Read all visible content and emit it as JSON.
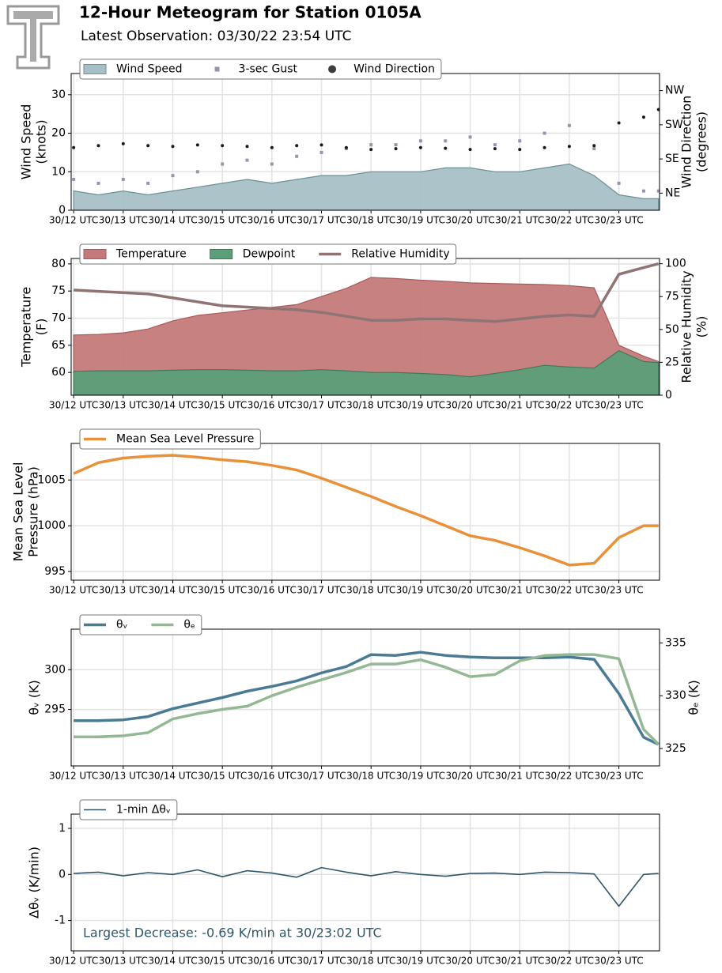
{
  "header": {
    "title": "12-Hour Meteogram for Station 0105A",
    "subtitle": "Latest Observation: 03/30/22 23:54 UTC"
  },
  "chart_data": [
    {
      "type": "area",
      "legend": "upper left",
      "grid": true,
      "ylabel": [
        "Wind Speed",
        "(knots)"
      ],
      "y2label": [
        "Wind Direction",
        "(degrees)"
      ],
      "x": [
        12,
        12.5,
        13,
        13.5,
        14,
        14.5,
        15,
        15.5,
        16,
        16.5,
        17,
        17.5,
        18,
        18.5,
        19,
        19.5,
        20,
        20.5,
        21,
        21.5,
        22,
        22.5,
        23,
        23.5,
        23.8
      ],
      "xlim": [
        11.95,
        23.82
      ],
      "xticks": [
        {
          "value": 12,
          "label": "30/12 UTC"
        },
        {
          "value": 13,
          "label": "30/13 UTC"
        },
        {
          "value": 14,
          "label": "30/14 UTC"
        },
        {
          "value": 15,
          "label": "30/15 UTC"
        },
        {
          "value": 16,
          "label": "30/16 UTC"
        },
        {
          "value": 17,
          "label": "30/17 UTC"
        },
        {
          "value": 18,
          "label": "30/18 UTC"
        },
        {
          "value": 19,
          "label": "30/19 UTC"
        },
        {
          "value": 20,
          "label": "30/20 UTC"
        },
        {
          "value": 21,
          "label": "30/21 UTC"
        },
        {
          "value": 22,
          "label": "30/22 UTC"
        },
        {
          "value": 23,
          "label": "30/23 UTC"
        }
      ],
      "ylim": [
        0,
        35.5
      ],
      "yticks": [
        0,
        10,
        20,
        30
      ],
      "y2lim": [
        0,
        360
      ],
      "y2ticks": [
        {
          "value": 45,
          "label": "NE"
        },
        {
          "value": 135,
          "label": "SE"
        },
        {
          "value": 225,
          "label": "SW"
        },
        {
          "value": 315,
          "label": "NW"
        }
      ],
      "series": [
        {
          "name": "Wind Speed",
          "mark": "area",
          "color": "#a7c0c6",
          "edge": "#6d8f96",
          "values": [
            5,
            4,
            5,
            4,
            5,
            6,
            7,
            8,
            7,
            8,
            9,
            9,
            10,
            10,
            10,
            11,
            11,
            10,
            10,
            11,
            12,
            9,
            4,
            3,
            3
          ]
        },
        {
          "name": "3-sec Gust",
          "mark": "square",
          "color": "#9a93ad",
          "values": [
            8,
            7,
            8,
            7,
            9,
            10,
            12,
            13,
            12,
            14,
            15,
            16,
            17,
            17,
            18,
            18,
            19,
            17,
            18,
            20,
            22,
            16,
            7,
            5,
            5
          ]
        },
        {
          "name": "Wind Direction",
          "mark": "circle",
          "color": "#1a1a1a",
          "axis": "y2",
          "values": [
            165,
            170,
            175,
            170,
            168,
            172,
            170,
            168,
            165,
            170,
            172,
            165,
            160,
            162,
            165,
            163,
            160,
            162,
            160,
            165,
            168,
            170,
            230,
            245,
            265
          ]
        }
      ]
    },
    {
      "type": "area",
      "legend": "upper left",
      "grid": true,
      "ylabel": [
        "Temperature",
        "(F)"
      ],
      "y2label": [
        "Relative Humidity",
        "(%)"
      ],
      "x": [
        12,
        12.5,
        13,
        13.5,
        14,
        14.5,
        15,
        15.5,
        16,
        16.5,
        17,
        17.5,
        18,
        18.5,
        19,
        19.5,
        20,
        20.5,
        21,
        21.5,
        22,
        22.5,
        23,
        23.5,
        23.8
      ],
      "xlim": [
        11.95,
        23.82
      ],
      "xticks": [
        {
          "value": 12,
          "label": "30/12 UTC"
        },
        {
          "value": 13,
          "label": "30/13 UTC"
        },
        {
          "value": 14,
          "label": "30/14 UTC"
        },
        {
          "value": 15,
          "label": "30/15 UTC"
        },
        {
          "value": 16,
          "label": "30/16 UTC"
        },
        {
          "value": 17,
          "label": "30/17 UTC"
        },
        {
          "value": 18,
          "label": "30/18 UTC"
        },
        {
          "value": 19,
          "label": "30/19 UTC"
        },
        {
          "value": 20,
          "label": "30/20 UTC"
        },
        {
          "value": 21,
          "label": "30/21 UTC"
        },
        {
          "value": 22,
          "label": "30/22 UTC"
        },
        {
          "value": 23,
          "label": "30/23 UTC"
        }
      ],
      "ylim": [
        55.8,
        81
      ],
      "yticks": [
        60,
        65,
        70,
        75,
        80
      ],
      "y2lim": [
        0,
        104
      ],
      "y2ticks": [
        0,
        25,
        50,
        75,
        100
      ],
      "series": [
        {
          "name": "Temperature",
          "mark": "area",
          "color": "#c47a7a",
          "edge": "#a85a5a",
          "values": [
            66.9,
            67,
            67.3,
            68,
            69.5,
            70.5,
            71,
            71.5,
            72,
            72.5,
            74,
            75.5,
            77.5,
            77.3,
            77,
            76.8,
            76.5,
            76.4,
            76.3,
            76.2,
            76,
            75.6,
            65,
            63,
            62
          ]
        },
        {
          "name": "Dewpoint",
          "mark": "area",
          "color": "#5c9e78",
          "edge": "#3f7a58",
          "values": [
            60.2,
            60.3,
            60.3,
            60.3,
            60.4,
            60.5,
            60.5,
            60.4,
            60.3,
            60.3,
            60.5,
            60.3,
            60,
            60,
            59.8,
            59.6,
            59.2,
            59.8,
            60.5,
            61.3,
            61,
            60.8,
            64,
            62,
            61.8
          ]
        },
        {
          "name": "Relative Humidity",
          "mark": "line",
          "color": "#8f7474",
          "axis": "y2",
          "values": [
            80,
            79,
            78,
            77,
            74,
            71,
            68,
            67,
            66,
            65,
            63,
            60,
            57,
            57,
            58,
            58,
            57,
            56,
            58,
            60,
            61,
            60,
            92,
            97,
            100
          ]
        }
      ]
    },
    {
      "type": "line",
      "legend": "upper left",
      "grid": true,
      "ylabel": [
        "Mean Sea Level",
        "Pressure (hPa)"
      ],
      "x": [
        12,
        12.5,
        13,
        13.5,
        14,
        14.5,
        15,
        15.5,
        16,
        16.5,
        17,
        17.5,
        18,
        18.5,
        19,
        19.5,
        20,
        20.5,
        21,
        21.5,
        22,
        22.5,
        23,
        23.5,
        23.8
      ],
      "xlim": [
        11.95,
        23.82
      ],
      "xticks": [
        {
          "value": 12,
          "label": "30/12 UTC"
        },
        {
          "value": 13,
          "label": "30/13 UTC"
        },
        {
          "value": 14,
          "label": "30/14 UTC"
        },
        {
          "value": 15,
          "label": "30/15 UTC"
        },
        {
          "value": 16,
          "label": "30/16 UTC"
        },
        {
          "value": 17,
          "label": "30/17 UTC"
        },
        {
          "value": 18,
          "label": "30/18 UTC"
        },
        {
          "value": 19,
          "label": "30/19 UTC"
        },
        {
          "value": 20,
          "label": "30/20 UTC"
        },
        {
          "value": 21,
          "label": "30/21 UTC"
        },
        {
          "value": 22,
          "label": "30/22 UTC"
        },
        {
          "value": 23,
          "label": "30/23 UTC"
        }
      ],
      "ylim": [
        994.05,
        1009
      ],
      "yticks": [
        995,
        1000,
        1005
      ],
      "series": [
        {
          "name": "Mean Sea Level Pressure",
          "mark": "line",
          "color": "#e8913a",
          "values": [
            1005.7,
            1006.9,
            1007.4,
            1007.6,
            1007.7,
            1007.5,
            1007.2,
            1007,
            1006.6,
            1006.1,
            1005.2,
            1004.2,
            1003.2,
            1002.1,
            1001.1,
            1000,
            998.9,
            998.4,
            997.6,
            996.7,
            995.7,
            995.9,
            998.7,
            1000,
            1000
          ]
        }
      ]
    },
    {
      "type": "line",
      "legend": "upper left",
      "grid": true,
      "ylabel": [
        "θᵥ (K)"
      ],
      "y2label": [
        "θₑ (K)"
      ],
      "x": [
        12,
        12.5,
        13,
        13.5,
        14,
        14.5,
        15,
        15.5,
        16,
        16.5,
        17,
        17.5,
        18,
        18.5,
        19,
        19.5,
        20,
        20.5,
        21,
        21.5,
        22,
        22.5,
        23,
        23.5,
        23.8
      ],
      "xlim": [
        11.95,
        23.82
      ],
      "xticks": [
        {
          "value": 12,
          "label": "30/12 UTC"
        },
        {
          "value": 13,
          "label": "30/13 UTC"
        },
        {
          "value": 14,
          "label": "30/14 UTC"
        },
        {
          "value": 15,
          "label": "30/15 UTC"
        },
        {
          "value": 16,
          "label": "30/16 UTC"
        },
        {
          "value": 17,
          "label": "30/17 UTC"
        },
        {
          "value": 18,
          "label": "30/18 UTC"
        },
        {
          "value": 19,
          "label": "30/19 UTC"
        },
        {
          "value": 20,
          "label": "30/20 UTC"
        },
        {
          "value": 21,
          "label": "30/21 UTC"
        },
        {
          "value": 22,
          "label": "30/22 UTC"
        },
        {
          "value": 23,
          "label": "30/23 UTC"
        }
      ],
      "ylim": [
        287.9,
        305.1
      ],
      "yticks": [
        295,
        300
      ],
      "y2lim": [
        323.35,
        336.3
      ],
      "y2ticks": [
        325,
        330,
        335
      ],
      "series": [
        {
          "name": "θᵥ",
          "mark": "line",
          "color": "#4a7a94",
          "values": [
            293.6,
            293.6,
            293.7,
            294.1,
            295.1,
            295.8,
            296.5,
            297.3,
            297.9,
            298.6,
            299.6,
            300.4,
            301.9,
            301.8,
            302.2,
            301.8,
            301.6,
            301.5,
            301.5,
            301.5,
            301.6,
            301.3,
            297,
            291.5,
            290.6
          ]
        },
        {
          "name": "θₑ",
          "mark": "line",
          "color": "#94b894",
          "axis": "y2",
          "values": [
            326.1,
            326.1,
            326.2,
            326.5,
            327.8,
            328.3,
            328.7,
            329,
            330,
            330.8,
            331.5,
            332.2,
            333,
            333,
            333.4,
            332.7,
            331.8,
            332,
            333.3,
            333.8,
            333.9,
            333.9,
            333.5,
            326.8,
            325.4
          ]
        }
      ]
    },
    {
      "type": "line",
      "legend": "upper left",
      "grid": true,
      "ylabel": [
        "Δθᵥ (K/min)"
      ],
      "annotation": "Largest Decrease: -0.69 K/min at 30/23:02 UTC",
      "x": [
        12,
        12.5,
        13,
        13.5,
        14,
        14.5,
        15,
        15.5,
        16,
        16.5,
        17,
        17.5,
        18,
        18.5,
        19,
        19.5,
        20,
        20.5,
        21,
        21.5,
        22,
        22.5,
        23,
        23.5,
        23.8
      ],
      "xlim": [
        11.95,
        23.82
      ],
      "xticks": [
        {
          "value": 12,
          "label": "30/12 UTC"
        },
        {
          "value": 13,
          "label": "30/13 UTC"
        },
        {
          "value": 14,
          "label": "30/14 UTC"
        },
        {
          "value": 15,
          "label": "30/15 UTC"
        },
        {
          "value": 16,
          "label": "30/16 UTC"
        },
        {
          "value": 17,
          "label": "30/17 UTC"
        },
        {
          "value": 18,
          "label": "30/18 UTC"
        },
        {
          "value": 19,
          "label": "30/19 UTC"
        },
        {
          "value": 20,
          "label": "30/20 UTC"
        },
        {
          "value": 21,
          "label": "30/21 UTC"
        },
        {
          "value": 22,
          "label": "30/22 UTC"
        },
        {
          "value": 23,
          "label": "30/23 UTC"
        }
      ],
      "ylim": [
        -1.66,
        1.31
      ],
      "yticks": [
        -1,
        0,
        1
      ],
      "series": [
        {
          "name": "1-min Δθᵥ",
          "mark": "thin",
          "color": "#2f5668",
          "values": [
            0.02,
            0.05,
            -0.03,
            0.04,
            0,
            0.1,
            -0.05,
            0.08,
            0.03,
            -0.06,
            0.15,
            0.05,
            -0.03,
            0.06,
            0,
            -0.04,
            0.02,
            0.03,
            0,
            0.05,
            0.04,
            0.01,
            -0.69,
            0,
            0.02
          ]
        }
      ]
    }
  ]
}
